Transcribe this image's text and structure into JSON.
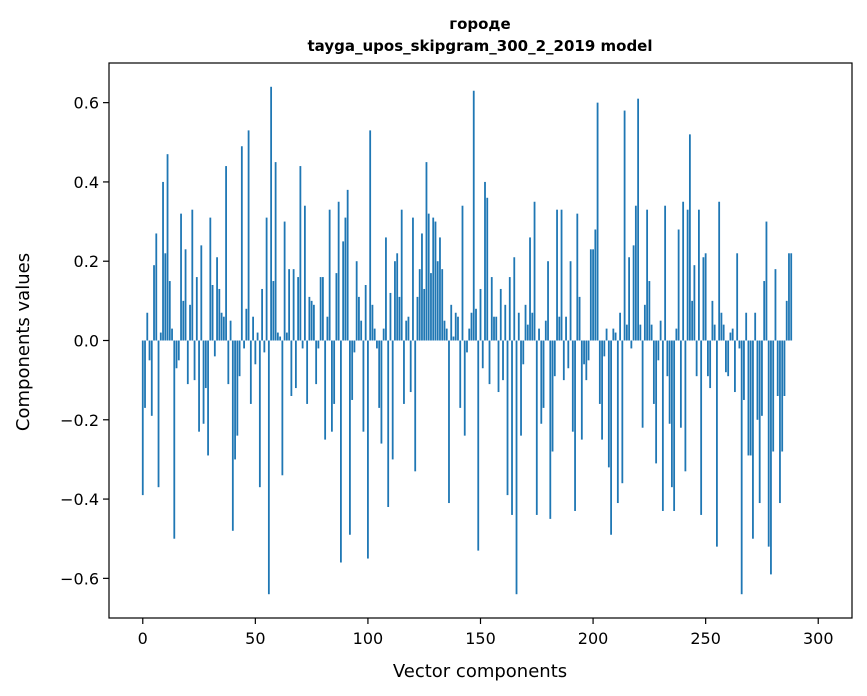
{
  "chart_data": {
    "type": "bar",
    "title_line1": "городе",
    "title_line2": "tayga_upos_skipgram_300_2_2019 model",
    "xlabel": "Vector components",
    "ylabel": "Components values",
    "xlim": [
      -15,
      315
    ],
    "ylim": [
      -0.7,
      0.7
    ],
    "x_ticks": [
      0,
      50,
      100,
      150,
      200,
      250,
      300
    ],
    "x_tick_labels": [
      "0",
      "50",
      "100",
      "150",
      "200",
      "250",
      "300"
    ],
    "y_ticks": [
      -0.6,
      -0.4,
      -0.2,
      0.0,
      0.2,
      0.4,
      0.6
    ],
    "y_tick_labels": [
      "−0.6",
      "−0.4",
      "−0.2",
      "0.0",
      "0.2",
      "0.4",
      "0.6"
    ],
    "bar_color": "#1f77b4",
    "grid": false,
    "values": [
      -0.39,
      -0.17,
      0.07,
      -0.05,
      -0.19,
      0.19,
      0.27,
      -0.37,
      0.02,
      0.4,
      0.22,
      0.47,
      0.15,
      0.03,
      -0.5,
      -0.07,
      -0.05,
      0.32,
      0.1,
      0.23,
      -0.11,
      0.09,
      0.33,
      -0.1,
      0.16,
      -0.23,
      0.24,
      -0.21,
      -0.12,
      -0.29,
      0.31,
      0.14,
      -0.04,
      0.21,
      0.13,
      0.07,
      0.06,
      0.44,
      -0.11,
      0.05,
      -0.48,
      -0.3,
      -0.24,
      -0.09,
      0.49,
      -0.02,
      0.08,
      0.53,
      -0.16,
      0.06,
      -0.06,
      0.02,
      -0.37,
      0.13,
      -0.03,
      0.31,
      -0.64,
      0.64,
      0.15,
      0.45,
      0.02,
      0.01,
      -0.34,
      0.3,
      0.02,
      0.18,
      -0.14,
      0.18,
      -0.12,
      0.16,
      0.44,
      -0.02,
      0.34,
      -0.16,
      0.11,
      0.1,
      0.09,
      -0.11,
      -0.02,
      0.16,
      0.16,
      -0.25,
      0.06,
      0.33,
      -0.23,
      -0.16,
      0.17,
      0.35,
      -0.56,
      0.25,
      0.31,
      0.38,
      -0.49,
      -0.15,
      -0.03,
      0.2,
      0.11,
      0.05,
      -0.23,
      0.14,
      -0.55,
      0.53,
      0.09,
      0.03,
      -0.02,
      -0.17,
      -0.26,
      0.03,
      0.26,
      -0.42,
      0.12,
      -0.3,
      0.2,
      0.22,
      0.11,
      0.33,
      -0.16,
      0.05,
      0.06,
      -0.13,
      0.31,
      -0.33,
      0.11,
      0.18,
      0.27,
      0.13,
      0.45,
      0.32,
      0.17,
      0.31,
      0.3,
      0.2,
      0.26,
      0.18,
      0.05,
      0.03,
      -0.41,
      0.09,
      0.01,
      0.07,
      0.06,
      -0.17,
      0.34,
      -0.24,
      -0.03,
      0.03,
      0.07,
      0.63,
      0.08,
      -0.53,
      0.13,
      -0.07,
      0.4,
      0.36,
      -0.11,
      0.16,
      0.06,
      0.06,
      -0.13,
      0.13,
      -0.1,
      0.09,
      -0.39,
      0.16,
      -0.44,
      0.21,
      -0.64,
      0.07,
      -0.24,
      -0.06,
      0.09,
      0.04,
      0.26,
      0.07,
      0.35,
      -0.44,
      0.03,
      -0.21,
      -0.17,
      0.05,
      0.2,
      -0.45,
      -0.28,
      -0.09,
      0.33,
      0.06,
      0.33,
      -0.1,
      0.06,
      -0.07,
      0.2,
      -0.23,
      -0.43,
      0.32,
      0.11,
      -0.25,
      -0.06,
      -0.1,
      -0.05,
      0.23,
      0.23,
      0.28,
      0.6,
      -0.16,
      -0.25,
      -0.04,
      0.03,
      -0.32,
      -0.49,
      0.03,
      0.02,
      -0.41,
      0.07,
      -0.36,
      0.58,
      0.04,
      0.21,
      -0.02,
      0.24,
      0.34,
      0.61,
      0.04,
      -0.22,
      0.09,
      0.33,
      0.15,
      0.04,
      -0.16,
      -0.31,
      -0.05,
      0.05,
      -0.43,
      0.34,
      -0.09,
      -0.21,
      -0.37,
      -0.43,
      0.03,
      0.28,
      -0.22,
      0.35,
      -0.33,
      0.33,
      0.52,
      0.1,
      0.19,
      -0.09,
      0.33,
      -0.44,
      0.21,
      0.22,
      -0.09,
      -0.12,
      0.1,
      0.04,
      -0.52,
      0.35,
      0.07,
      0.04,
      -0.08,
      -0.09,
      0.02,
      0.03,
      -0.13,
      0.22,
      -0.02,
      -0.64,
      -0.15,
      0.07,
      -0.29,
      -0.29,
      -0.5,
      0.07,
      -0.2,
      -0.41,
      -0.19,
      0.15,
      0.3,
      -0.52,
      -0.59,
      -0.28,
      0.18,
      -0.14,
      -0.41,
      -0.28,
      -0.14,
      0.1,
      0.22,
      0.22
    ]
  }
}
